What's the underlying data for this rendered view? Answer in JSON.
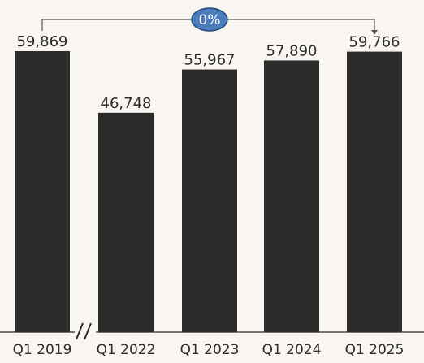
{
  "chart_data": {
    "type": "bar",
    "categories": [
      "Q1 2019",
      "Q1 2022",
      "Q1 2023",
      "Q1 2024",
      "Q1 2025"
    ],
    "values": [
      59869,
      46748,
      55967,
      57890,
      59766
    ],
    "value_labels": [
      "59,869",
      "46,748",
      "55,967",
      "57,890",
      "59,766"
    ],
    "ylim": [
      0,
      59869
    ],
    "axis_break_between": [
      "Q1 2019",
      "Q1 2022"
    ],
    "change_annotation": {
      "from": "Q1 2019",
      "to": "Q1 2025",
      "label": "0%"
    },
    "colors": {
      "bar": "#2b2b2b",
      "badge_fill": "#4a7bbd",
      "badge_stroke": "#24487a",
      "background": "#f9f6f1"
    },
    "grid": false
  }
}
